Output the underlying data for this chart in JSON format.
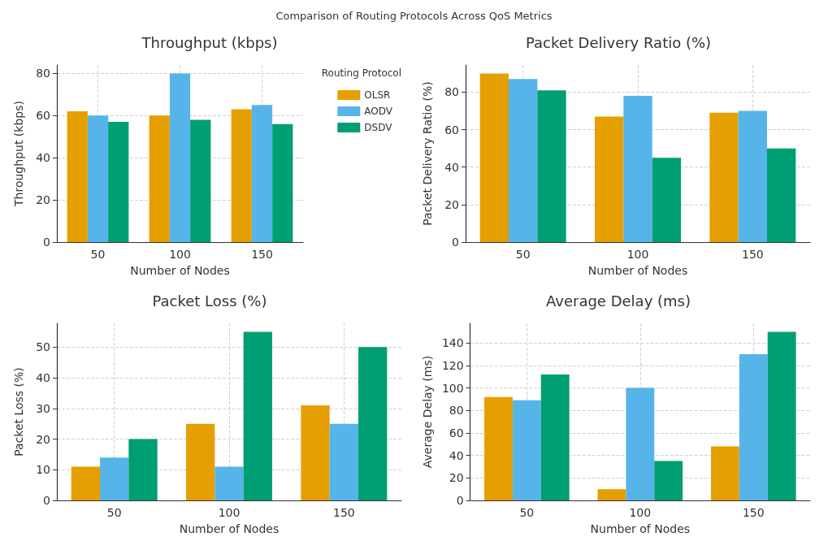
{
  "chart_data": [
    {
      "type": "bar",
      "title": "Throughput (kbps)",
      "xlabel": "Number of Nodes",
      "ylabel": "Throughput (kbps)",
      "annotations": [
        "Comparison of Routing Protocols Across QoS Metrics"
      ],
      "categories": [
        "50",
        "100",
        "150"
      ],
      "series": [
        {
          "name": "OLSR",
          "color": "#e69f00",
          "values": [
            62,
            60,
            63
          ]
        },
        {
          "name": "AODV",
          "color": "#56b4e9",
          "values": [
            60,
            80,
            65
          ]
        },
        {
          "name": "DSDV",
          "color": "#009e73",
          "values": [
            57,
            58,
            56
          ]
        }
      ],
      "ylim": [
        0,
        84
      ],
      "yticks": [
        0,
        20,
        40,
        60,
        80
      ],
      "grid": true,
      "legend": "top right",
      "legend_title": "Routing Protocol"
    },
    {
      "type": "bar",
      "title": "Packet Delivery Ratio (%)",
      "xlabel": "Number of Nodes",
      "ylabel": "Packet Delivery Ratio (%)",
      "categories": [
        "50",
        "100",
        "150"
      ],
      "series": [
        {
          "color": "#e69f00",
          "values": [
            90,
            67,
            69
          ]
        },
        {
          "color": "#56b4e9",
          "values": [
            87,
            78,
            70
          ]
        },
        {
          "color": "#009e73",
          "values": [
            81,
            45,
            50
          ]
        }
      ],
      "ylim": [
        0,
        94.5
      ],
      "yticks": [
        0,
        20,
        40,
        60,
        80
      ],
      "grid": true
    },
    {
      "type": "bar",
      "title": "Packet Loss (%)",
      "xlabel": "Number of Nodes",
      "ylabel": "Packet Loss (%)",
      "categories": [
        "50",
        "100",
        "150"
      ],
      "series": [
        {
          "color": "#e69f00",
          "values": [
            11,
            25,
            31
          ]
        },
        {
          "color": "#56b4e9",
          "values": [
            14,
            11,
            25
          ]
        },
        {
          "color": "#009e73",
          "values": [
            20,
            55,
            50
          ]
        }
      ],
      "ylim": [
        0,
        57.75
      ],
      "yticks": [
        0,
        10,
        20,
        30,
        40,
        50
      ],
      "grid": true
    },
    {
      "type": "bar",
      "title": "Average Delay (ms)",
      "xlabel": "Number of Nodes",
      "ylabel": "Average Delay (ms)",
      "categories": [
        "50",
        "100",
        "150"
      ],
      "series": [
        {
          "color": "#e69f00",
          "values": [
            92,
            10,
            48
          ]
        },
        {
          "color": "#56b4e9",
          "values": [
            89,
            100,
            130
          ]
        },
        {
          "color": "#009e73",
          "values": [
            112,
            35,
            150
          ]
        }
      ],
      "ylim": [
        0,
        157.5
      ],
      "yticks": [
        0,
        20,
        40,
        60,
        80,
        100,
        120,
        140
      ],
      "grid": true
    }
  ]
}
